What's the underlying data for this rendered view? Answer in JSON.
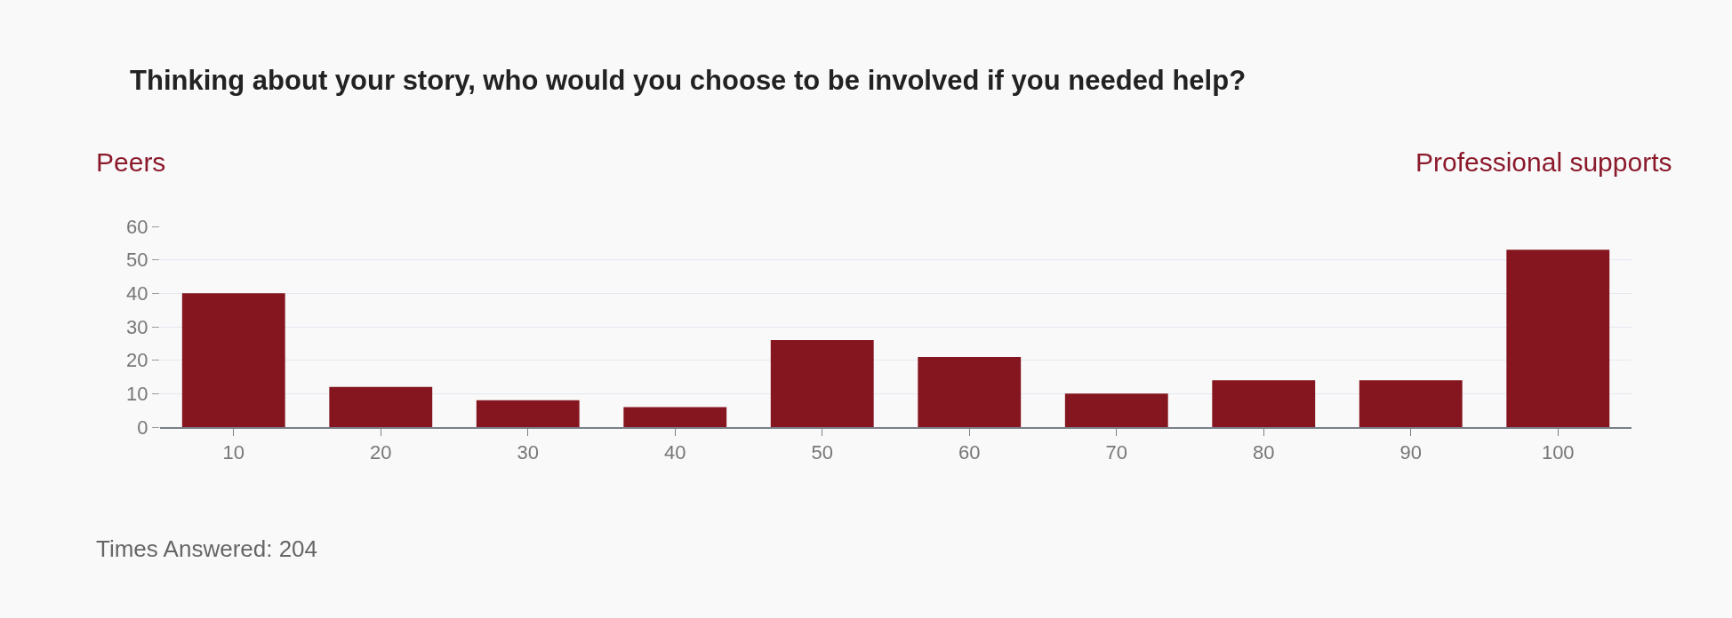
{
  "chart_data": {
    "type": "bar",
    "title": "Thinking about your story, who would you choose to be involved if you needed help?",
    "categories": [
      "10",
      "20",
      "30",
      "40",
      "50",
      "60",
      "70",
      "80",
      "90",
      "100"
    ],
    "values": [
      40,
      12,
      8,
      6,
      26,
      21,
      10,
      14,
      14,
      53
    ],
    "color": "#85161f",
    "ylim": [
      0,
      60
    ],
    "yticks": [
      0,
      10,
      20,
      30,
      40,
      50,
      60
    ],
    "grid": "y",
    "legend": false,
    "annotations": [
      "Peers",
      "Professional supports",
      "Times Answered: 204"
    ]
  }
}
